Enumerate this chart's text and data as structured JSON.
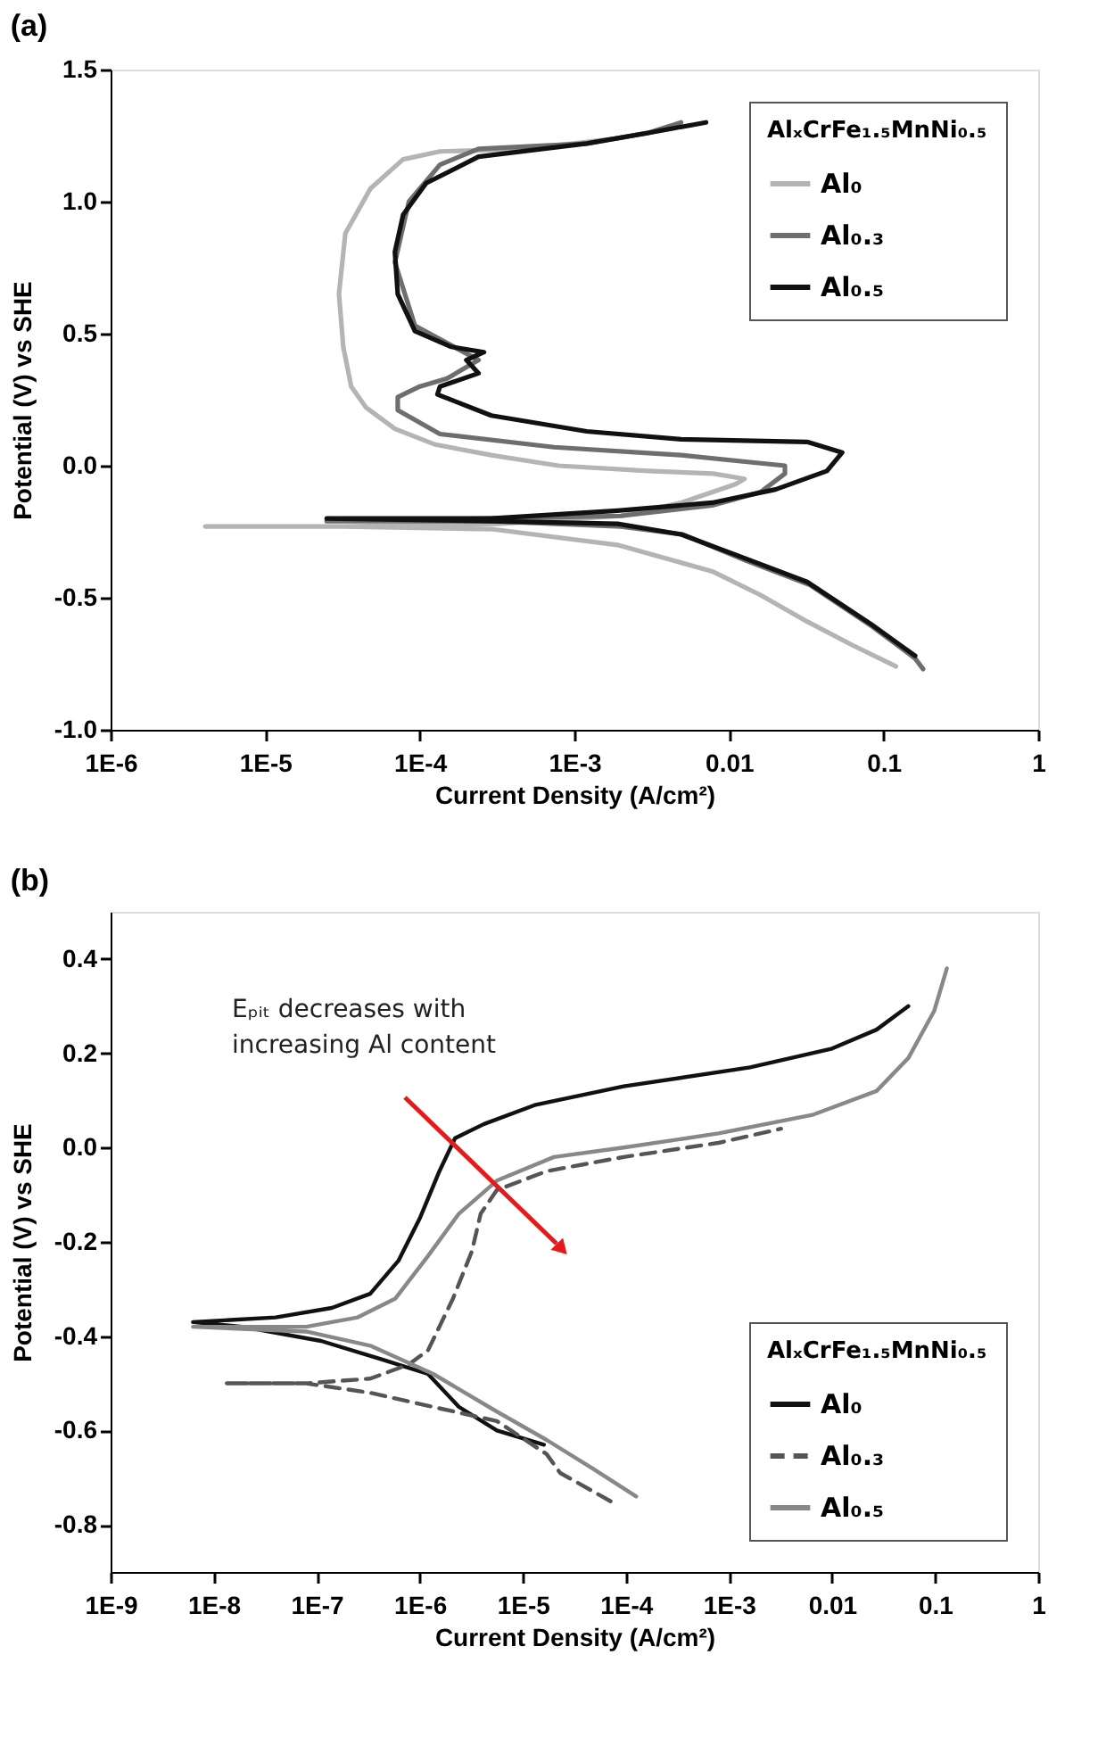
{
  "chart_data": [
    {
      "type": "line",
      "title": "(a)",
      "xlabel": "Current Density (A/cm²)",
      "ylabel": "Potential (V) vs SHE",
      "legend_title": "AlₓCrFe₁.₅MnNi₀.₅",
      "log": "x",
      "grid": false,
      "legend": "top right",
      "marker": "none",
      "xlim": [
        1e-06,
        1
      ],
      "xticks": [
        {
          "value": 1e-06,
          "label": "1E-6"
        },
        {
          "value": 1e-05,
          "label": "1E-5"
        },
        {
          "value": 0.0001,
          "label": "1E-4"
        },
        {
          "value": 0.001,
          "label": "1E-3"
        },
        0.01,
        0.1,
        1
      ],
      "ylim": [
        -1,
        1.5
      ],
      "yticks": [
        {
          "value": -1,
          "label": "-1.0"
        },
        -0.5,
        {
          "value": 0,
          "label": "0.0"
        },
        0.5,
        {
          "value": 1,
          "label": "1.0"
        },
        1.5
      ],
      "series": [
        {
          "name": "Al₀",
          "color": "#b4b4b4",
          "line_style": "solid",
          "x": [
            0.12,
            0.063,
            0.032,
            0.016,
            0.0078,
            0.0019,
            0.00029,
            3.2e-05,
            4.1e-06,
            3.2e-05,
            0.00032,
            0.002,
            0.0049,
            0.011,
            0.0126,
            0.0079,
            0.003,
            0.00079,
            0.00029,
            0.000126,
            6.9e-05,
            4.5e-05,
            3.6e-05,
            3.2e-05,
            3e-05,
            3.3e-05,
            4.8e-05,
            7.8e-05,
            0.000135,
            0.0005,
            0.0019,
            0.0045
          ],
          "values": [
            -0.76,
            -0.68,
            -0.59,
            -0.49,
            -0.4,
            -0.3,
            -0.24,
            -0.23,
            -0.23,
            -0.23,
            -0.22,
            -0.19,
            -0.14,
            -0.07,
            -0.05,
            -0.03,
            -0.02,
            0.0,
            0.04,
            0.08,
            0.14,
            0.22,
            0.3,
            0.45,
            0.65,
            0.88,
            1.05,
            1.16,
            1.19,
            1.2,
            1.24,
            1.28
          ]
        },
        {
          "name": "Al₀.₃",
          "color": "#6e6e6e",
          "line_style": "solid",
          "x": [
            0.18,
            0.16,
            0.085,
            0.033,
            0.013,
            0.005,
            0.002,
            0.00029,
            2.5e-05,
            0.00029,
            0.002,
            0.0078,
            0.016,
            0.023,
            0.023,
            0.0049,
            0.00074,
            0.000135,
            7.2e-05,
            7.2e-05,
            0.0001,
            0.00015,
            0.00024,
            9.3e-05,
            6.9e-05,
            8.5e-05,
            0.000135,
            0.00024,
            0.0012,
            0.003,
            0.0049
          ],
          "values": [
            -0.77,
            -0.73,
            -0.61,
            -0.45,
            -0.36,
            -0.26,
            -0.23,
            -0.21,
            -0.21,
            -0.2,
            -0.19,
            -0.15,
            -0.1,
            -0.03,
            0.0,
            0.04,
            0.07,
            0.12,
            0.21,
            0.26,
            0.3,
            0.33,
            0.4,
            0.53,
            0.77,
            1.0,
            1.14,
            1.2,
            1.22,
            1.26,
            1.3
          ]
        },
        {
          "name": "Al₀.₅",
          "color": "#111111",
          "line_style": "solid",
          "x": [
            0.16,
            0.083,
            0.032,
            0.0126,
            0.0049,
            0.0019,
            0.00029,
            2.5e-05,
            0.00029,
            0.0019,
            0.0078,
            0.02,
            0.043,
            0.054,
            0.032,
            0.0049,
            0.0012,
            0.00029,
            0.00013,
            0.000135,
            0.00024,
            0.0002,
            0.00026,
            0.00016,
            9.3e-05,
            7.2e-05,
            6.9e-05,
            7.8e-05,
            0.00011,
            0.00024,
            0.0012,
            0.003,
            0.0071
          ],
          "values": [
            -0.72,
            -0.6,
            -0.44,
            -0.35,
            -0.26,
            -0.22,
            -0.21,
            -0.2,
            -0.2,
            -0.17,
            -0.14,
            -0.09,
            -0.02,
            0.05,
            0.09,
            0.1,
            0.13,
            0.19,
            0.27,
            0.3,
            0.35,
            0.4,
            0.43,
            0.45,
            0.51,
            0.65,
            0.81,
            0.95,
            1.07,
            1.17,
            1.22,
            1.26,
            1.3
          ]
        }
      ]
    },
    {
      "type": "line",
      "title": "(b)",
      "xlabel": "Current Density (A/cm²)",
      "ylabel": "Potential (V) vs SHE",
      "legend_title": "AlₓCrFe₁.₅MnNi₀.₅",
      "log": "x",
      "grid": false,
      "legend": "bottom right",
      "marker": "none",
      "annotations": [
        "Eₚᵢₜ decreases with\nincreasing Al content"
      ],
      "xlim": [
        1e-09,
        1
      ],
      "xticks": [
        {
          "value": 1e-09,
          "label": "1E-9"
        },
        {
          "value": 1e-08,
          "label": "1E-8"
        },
        {
          "value": 1e-07,
          "label": "1E-7"
        },
        {
          "value": 1e-06,
          "label": "1E-6"
        },
        {
          "value": 1e-05,
          "label": "1E-5"
        },
        {
          "value": 0.0001,
          "label": "1E-4"
        },
        {
          "value": 0.001,
          "label": "1E-3"
        },
        0.01,
        0.1,
        1
      ],
      "ylim": [
        -0.9,
        0.5
      ],
      "yticks": [
        -0.8,
        -0.6,
        -0.4,
        -0.2,
        {
          "value": 0,
          "label": "0.0"
        },
        0.2,
        0.4
      ],
      "series": [
        {
          "name": "Al₀",
          "color": "#111111",
          "line_style": "solid",
          "x": [
            1.6e-05,
            5.6e-06,
            2.4e-06,
            1.2e-06,
            4.4e-07,
            1.1e-07,
            1.9e-08,
            6.3e-09,
            4e-08,
            1.4e-07,
            3.3e-07,
            6.2e-07,
            1e-06,
            1.55e-06,
            2.2e-06,
            4.2e-06,
            1.3e-05,
            9.5e-05,
            0.0016,
            0.01,
            0.027,
            0.055
          ],
          "values": [
            -0.63,
            -0.6,
            -0.55,
            -0.48,
            -0.45,
            -0.41,
            -0.38,
            -0.37,
            -0.36,
            -0.34,
            -0.31,
            -0.24,
            -0.15,
            -0.05,
            0.02,
            0.05,
            0.09,
            0.13,
            0.17,
            0.21,
            0.25,
            0.3
          ]
        },
        {
          "name": "Al₀.₃",
          "color": "#555555",
          "line_style": "dashed",
          "x": [
            7.1e-05,
            2.3e-05,
            1.7e-05,
            5.6e-06,
            1.35e-06,
            3.3e-07,
            7.9e-08,
            1.3e-08,
            7.9e-08,
            3.3e-07,
            7.8e-07,
            1.2e-06,
            2.1e-06,
            3.2e-06,
            3.9e-06,
            5.6e-06,
            1.7e-05,
            9.5e-05,
            0.00079,
            0.0032
          ],
          "values": [
            -0.75,
            -0.69,
            -0.65,
            -0.58,
            -0.55,
            -0.52,
            -0.5,
            -0.5,
            -0.5,
            -0.49,
            -0.46,
            -0.43,
            -0.32,
            -0.22,
            -0.14,
            -0.09,
            -0.05,
            -0.02,
            0.01,
            0.04
          ]
        },
        {
          "name": "Al₀.₅",
          "color": "#888888",
          "line_style": "solid",
          "x": [
            0.000126,
            4.7e-05,
            1.7e-05,
            5.6e-06,
            1.35e-06,
            3.3e-07,
            7.9e-08,
            6.3e-09,
            7.9e-08,
            2.5e-07,
            5.8e-07,
            1.2e-06,
            2.4e-06,
            5.6e-06,
            2e-05,
            9.5e-05,
            0.00079,
            0.0066,
            0.027,
            0.055,
            0.098,
            0.13
          ],
          "values": [
            -0.74,
            -0.68,
            -0.62,
            -0.56,
            -0.48,
            -0.42,
            -0.39,
            -0.38,
            -0.38,
            -0.36,
            -0.32,
            -0.23,
            -0.14,
            -0.07,
            -0.02,
            0.0,
            0.03,
            0.07,
            0.12,
            0.19,
            0.29,
            0.38
          ]
        }
      ]
    }
  ]
}
